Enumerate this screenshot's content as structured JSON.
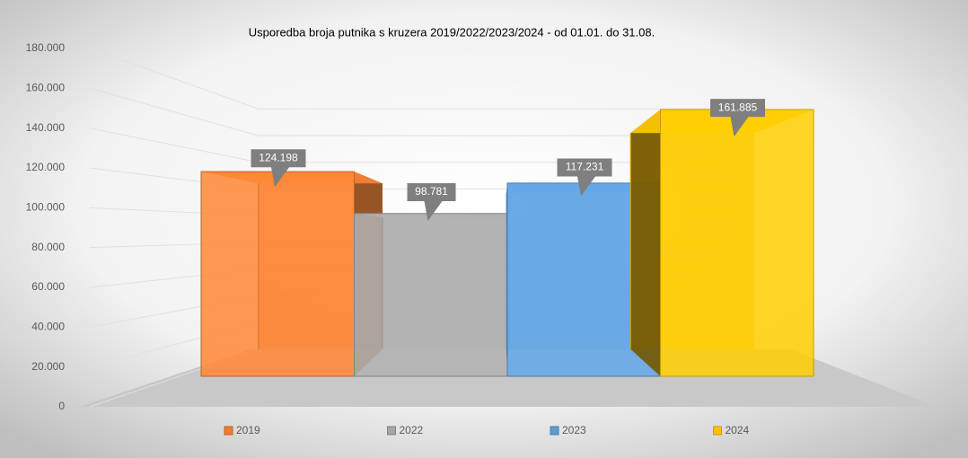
{
  "chart_data": {
    "type": "bar3d",
    "title": "Usporedba broja putnika s kruzera 2019/2022/2023/2024 - od 01.01. do 31.08.",
    "series": [
      {
        "name": "2019",
        "color": "#ed7d31",
        "values": [
          124198
        ],
        "value_labels": [
          "124.198"
        ]
      },
      {
        "name": "2022",
        "color": "#a5a5a5",
        "values": [
          98781
        ],
        "value_labels": [
          "98.781"
        ]
      },
      {
        "name": "2023",
        "color": "#5b9bd5",
        "values": [
          117231
        ],
        "value_labels": [
          "117.231"
        ]
      },
      {
        "name": "2024",
        "color": "#ffc000",
        "values": [
          161885
        ],
        "value_labels": [
          "161.885"
        ]
      }
    ],
    "ylim": [
      0,
      180000
    ],
    "yticks": [
      0,
      {
        "value": 20000,
        "label": "20.000"
      },
      {
        "value": 40000,
        "label": "40.000"
      },
      {
        "value": 60000,
        "label": "60.000"
      },
      {
        "value": 80000,
        "label": "80.000"
      },
      {
        "value": 100000,
        "label": "100.000"
      },
      {
        "value": 120000,
        "label": "120.000"
      },
      {
        "value": 140000,
        "label": "140.000"
      },
      {
        "value": 160000,
        "label": "160.000"
      },
      {
        "value": 180000,
        "label": "180.000"
      }
    ],
    "grid": true,
    "legend": "bottom"
  }
}
